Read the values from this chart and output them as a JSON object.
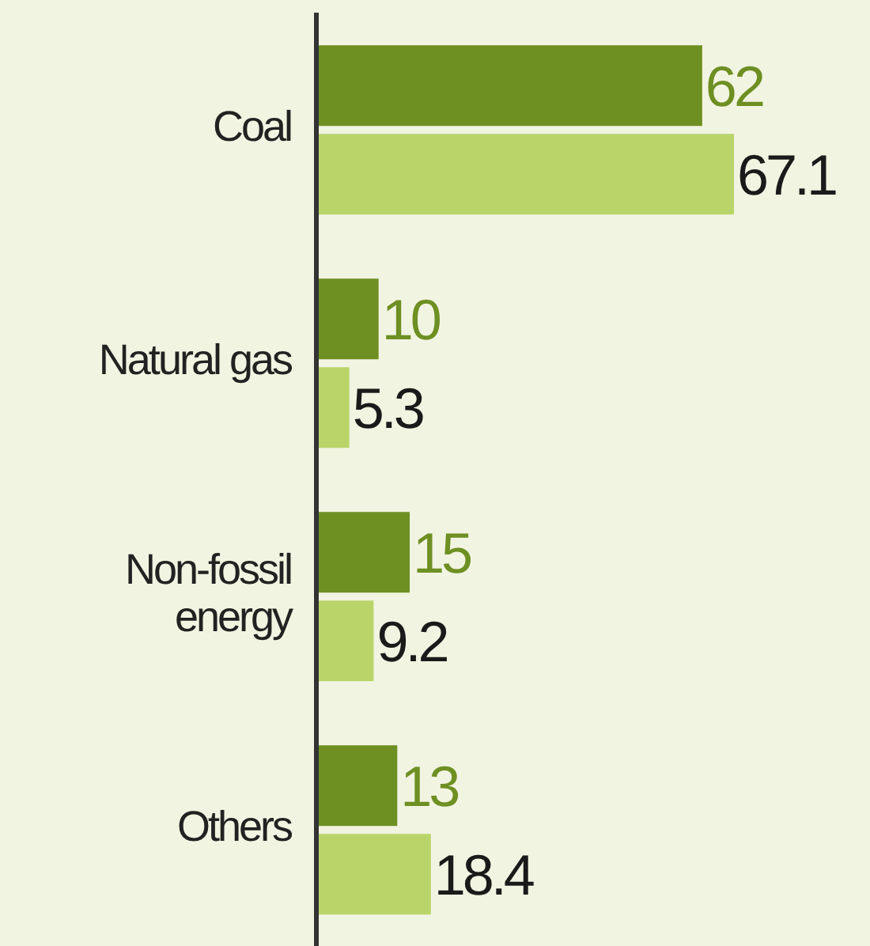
{
  "chart_data": {
    "type": "bar",
    "orientation": "horizontal",
    "categories": [
      "Coal",
      "Natural gas",
      "Non-fossil energy",
      "Others"
    ],
    "series": [
      {
        "color": "#6e8f22",
        "values": [
          62,
          10,
          15,
          13
        ]
      },
      {
        "color": "#b9d56a",
        "values": [
          67.1,
          5.3,
          9.2,
          18.4
        ]
      }
    ],
    "data_labels": true,
    "legend": false,
    "grid": false
  }
}
